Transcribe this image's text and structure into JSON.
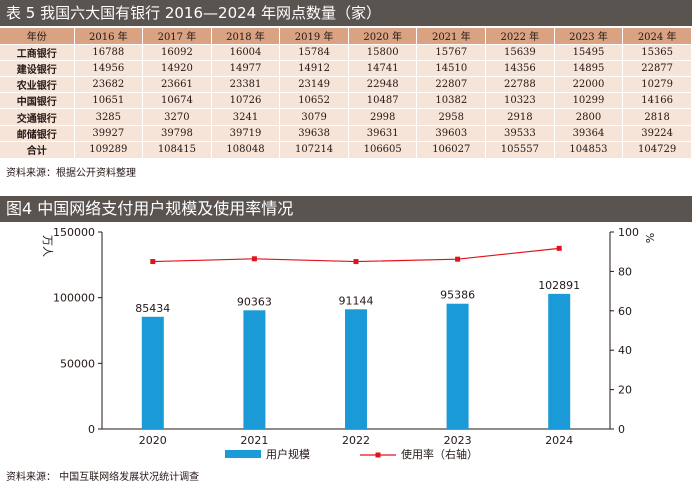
{
  "table": {
    "title": "表 5  我国六大国有银行 2016—2024 年网点数量（家）",
    "header_label": "年份",
    "years": [
      "2016 年",
      "2017 年",
      "2018 年",
      "2019 年",
      "2020 年",
      "2021 年",
      "2022 年",
      "2023 年",
      "2024 年"
    ],
    "rows": [
      {
        "bank": "工商银行",
        "values": [
          "16788",
          "16092",
          "16004",
          "15784",
          "15800",
          "15767",
          "15639",
          "15495",
          "15365"
        ]
      },
      {
        "bank": "建设银行",
        "values": [
          "14956",
          "14920",
          "14977",
          "14912",
          "14741",
          "14510",
          "14356",
          "14895",
          "22877"
        ]
      },
      {
        "bank": "农业银行",
        "values": [
          "23682",
          "23661",
          "23381",
          "23149",
          "22948",
          "22807",
          "22788",
          "22000",
          "10279"
        ]
      },
      {
        "bank": "中国银行",
        "values": [
          "10651",
          "10674",
          "10726",
          "10652",
          "10487",
          "10382",
          "10323",
          "10299",
          "14166"
        ]
      },
      {
        "bank": "交通银行",
        "values": [
          "3285",
          "3270",
          "3241",
          "3079",
          "2998",
          "2958",
          "2918",
          "2800",
          "2818"
        ]
      },
      {
        "bank": "邮储银行",
        "values": [
          "39927",
          "39798",
          "39719",
          "39638",
          "39631",
          "39603",
          "39533",
          "39364",
          "39224"
        ]
      },
      {
        "bank": "合计",
        "values": [
          "109289",
          "108415",
          "108048",
          "107214",
          "106605",
          "106027",
          "105557",
          "104853",
          "104729"
        ]
      }
    ],
    "source": "资料来源：根据公开资料整理"
  },
  "figure": {
    "title": "图4  中国网络支付用户规模及使用率情况",
    "source": "资料来源：  中国互联网络发展状况统计调查"
  },
  "chart_data": {
    "type": "bar",
    "categories": [
      "2020",
      "2021",
      "2022",
      "2023",
      "2024"
    ],
    "series": [
      {
        "name": "用户规模",
        "type": "bar",
        "axis": "left",
        "values": [
          85434,
          90363,
          91144,
          95386,
          102891
        ],
        "color": "#1a9ad6"
      },
      {
        "name": "使用率（右轴）",
        "type": "line",
        "axis": "right",
        "values": [
          85.0,
          86.4,
          85.0,
          86.2,
          91.7
        ],
        "color": "#e0121b"
      }
    ],
    "data_labels": [
      "85434",
      "90363",
      "91144",
      "95386",
      "102891"
    ],
    "ylabel": "万人",
    "y2label": "%",
    "ylim": [
      0,
      150000
    ],
    "y2lim": [
      0,
      100
    ],
    "yticks": [
      "0",
      "50000",
      "100000",
      "150000"
    ],
    "y2ticks": [
      "0",
      "20",
      "40",
      "60",
      "80",
      "100"
    ],
    "legend_position": "bottom",
    "grid": false
  }
}
